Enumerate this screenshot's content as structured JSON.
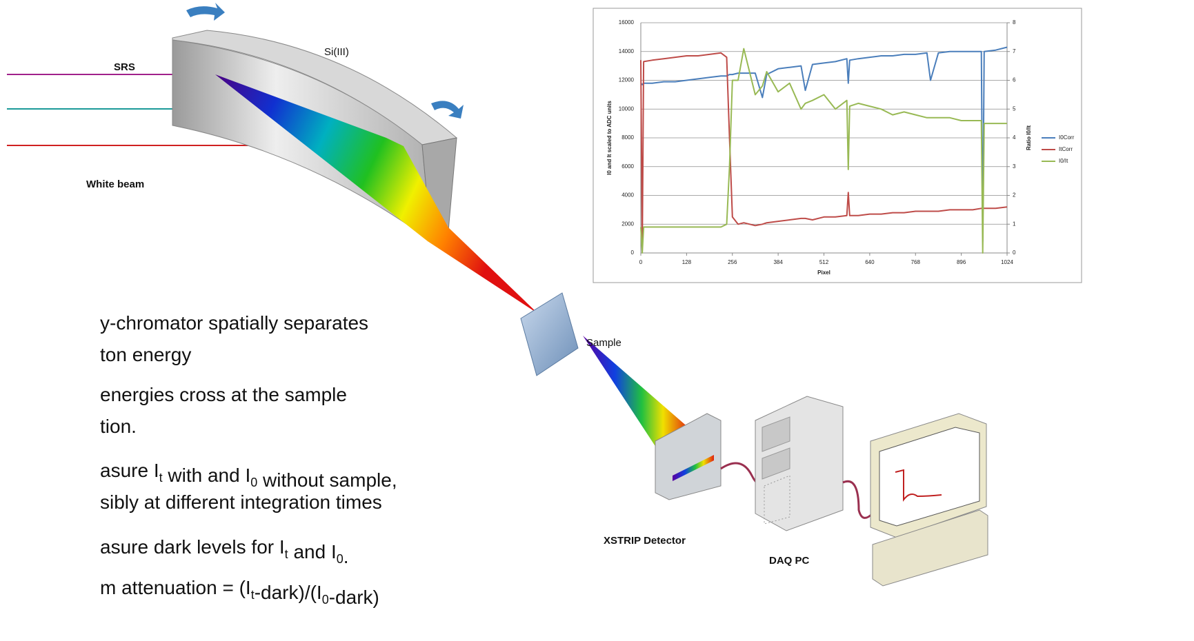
{
  "diagram": {
    "labels": {
      "srs": "SRS",
      "crystal": "Si(III)",
      "white_beam": "White beam",
      "sample": "Sample",
      "detector": "XSTRIP Detector",
      "daq": "DAQ PC"
    }
  },
  "bullets": [
    [
      [
        {
          "t": "y-chromator spatially separates"
        }
      ],
      [
        {
          "t": "ton energy"
        }
      ]
    ],
    [
      [
        {
          "t": "energies cross at the sample"
        }
      ],
      [
        {
          "t": "tion."
        }
      ]
    ],
    [
      [
        {
          "t": "asure I"
        },
        {
          "sub": "t"
        },
        {
          "t": " with and I"
        },
        {
          "sub": "0"
        },
        {
          "t": " without sample,"
        }
      ],
      [
        {
          "t": "sibly at different integration times"
        }
      ]
    ],
    [
      [
        {
          "t": "asure dark levels for I"
        },
        {
          "sub": "t"
        },
        {
          "t": " and I"
        },
        {
          "sub": "0"
        },
        {
          "t": "."
        }
      ]
    ],
    [
      [
        {
          "t": "m attenuation = (I"
        },
        {
          "sub": "t"
        },
        {
          "t": "-dark)/(I"
        },
        {
          "sub": "0"
        },
        {
          "t": "-dark)"
        }
      ]
    ]
  ],
  "chart_data": {
    "type": "line",
    "xlabel": "Pixel",
    "ylabel": "I0 and It scaled to ADC units",
    "y2label": "Ratio I0/It",
    "x": [
      0,
      4,
      8,
      32,
      64,
      96,
      128,
      160,
      192,
      224,
      240,
      248,
      256,
      272,
      288,
      320,
      340,
      352,
      384,
      416,
      448,
      460,
      480,
      512,
      544,
      576,
      580,
      584,
      608,
      640,
      672,
      704,
      736,
      768,
      800,
      810,
      832,
      864,
      896,
      928,
      952,
      956,
      960,
      992,
      1024
    ],
    "xlim": [
      0,
      1024
    ],
    "xticks": [
      0,
      128,
      256,
      384,
      512,
      640,
      768,
      896,
      1024
    ],
    "ylim": [
      0,
      16000
    ],
    "yticks": [
      0,
      2000,
      4000,
      6000,
      8000,
      10000,
      12000,
      14000,
      16000
    ],
    "y2lim": [
      0,
      8
    ],
    "y2ticks": [
      0,
      1,
      2,
      3,
      4,
      5,
      6,
      7,
      8
    ],
    "grid": true,
    "legend": "right",
    "series": [
      {
        "name": "I0Corr",
        "color": "#4a7ebb",
        "values": [
          11800,
          11700,
          11800,
          11800,
          11900,
          11900,
          12000,
          12100,
          12200,
          12300,
          12300,
          12400,
          12400,
          12500,
          12500,
          12500,
          10800,
          12400,
          12800,
          12900,
          13000,
          11300,
          13100,
          13200,
          13300,
          13500,
          11800,
          13400,
          13500,
          13600,
          13700,
          13700,
          13800,
          13800,
          13900,
          12000,
          13900,
          14000,
          14000,
          14000,
          14000,
          800,
          14000,
          14100,
          14300
        ]
      },
      {
        "name": "ItCorr",
        "color": "#be4b48",
        "values": [
          13400,
          200,
          13300,
          13400,
          13500,
          13600,
          13700,
          13700,
          13800,
          13900,
          13600,
          8000,
          2500,
          2000,
          2100,
          1900,
          2000,
          2100,
          2200,
          2300,
          2400,
          2400,
          2300,
          2500,
          2500,
          2600,
          4200,
          2600,
          2600,
          2700,
          2700,
          2800,
          2800,
          2900,
          2900,
          2900,
          2900,
          3000,
          3000,
          3000,
          3100,
          3100,
          3100,
          3100,
          3200
        ]
      },
      {
        "name": "I0/It",
        "color": "#98b954",
        "axis": "y2",
        "values": [
          0.9,
          0,
          0.9,
          0.9,
          0.9,
          0.9,
          0.9,
          0.9,
          0.9,
          0.9,
          1.0,
          3.0,
          6.0,
          6.0,
          7.1,
          5.5,
          5.8,
          6.3,
          5.6,
          5.9,
          5.0,
          5.2,
          5.3,
          5.5,
          5.0,
          5.3,
          2.9,
          5.1,
          5.2,
          5.1,
          5.0,
          4.8,
          4.9,
          4.8,
          4.7,
          4.7,
          4.7,
          4.7,
          4.6,
          4.6,
          4.6,
          0,
          4.5,
          4.5,
          4.5
        ]
      }
    ]
  }
}
